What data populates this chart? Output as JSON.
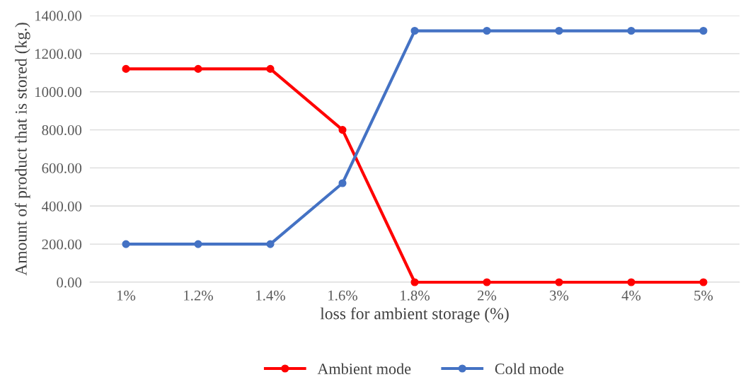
{
  "chart_data": {
    "type": "line",
    "xlabel": "loss for ambient storage (%)",
    "ylabel": "Amount of product that is stored (kg.)",
    "categories": [
      "1%",
      "1.2%",
      "1.4%",
      "1.6%",
      "1.8%",
      "2%",
      "3%",
      "4%",
      "5%"
    ],
    "series": [
      {
        "name": "Ambient mode",
        "color": "#ff0000",
        "values": [
          1120,
          1120,
          1120,
          800,
          0,
          0,
          0,
          0,
          0
        ]
      },
      {
        "name": "Cold mode",
        "color": "#4472c4",
        "values": [
          200,
          200,
          200,
          520,
          1320,
          1320,
          1320,
          1320,
          1320
        ]
      }
    ],
    "ylim": [
      0,
      1400
    ],
    "yticks": [
      {
        "value": 0,
        "label": "0.00"
      },
      {
        "value": 200,
        "label": "200.00"
      },
      {
        "value": 400,
        "label": "400.00"
      },
      {
        "value": 600,
        "label": "600.00"
      },
      {
        "value": 800,
        "label": "800.00"
      },
      {
        "value": 1000,
        "label": "1000.00"
      },
      {
        "value": 1200,
        "label": "1200.00"
      },
      {
        "value": 1400,
        "label": "1400.00"
      }
    ],
    "grid": "y",
    "legend": "bottom",
    "marker": "circle",
    "line_style": "solid"
  }
}
